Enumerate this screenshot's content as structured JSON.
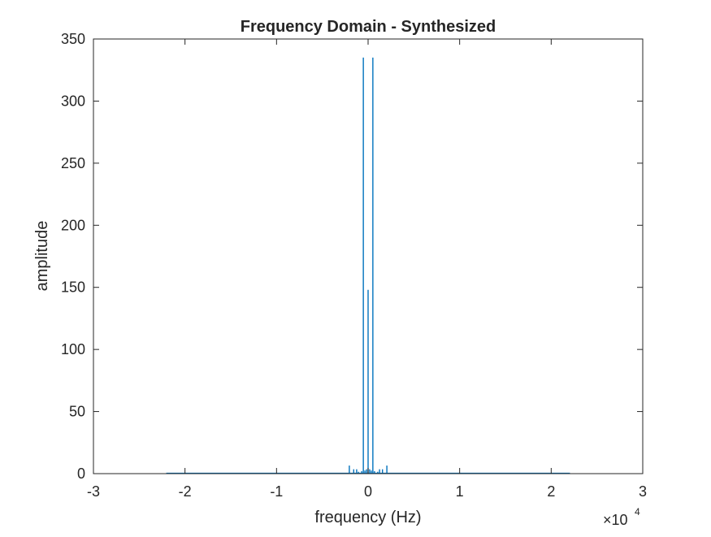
{
  "chart_data": {
    "type": "line",
    "title": "Frequency Domain - Synthesized",
    "xlabel": "frequency (Hz)",
    "ylabel": "amplitude",
    "x_exponent_label": "×10",
    "x_exponent_power": "4",
    "xlim": [
      -3,
      3
    ],
    "ylim": [
      0,
      350
    ],
    "x_scale_multiplier": 10000,
    "xticks": [
      -3,
      -2,
      -1,
      0,
      1,
      2,
      3
    ],
    "xtick_labels": [
      "-3",
      "-2",
      "-1",
      "0",
      "1",
      "2",
      "3"
    ],
    "yticks": [
      0,
      50,
      100,
      150,
      200,
      250,
      300,
      350
    ],
    "ytick_labels": [
      "0",
      "50",
      "100",
      "150",
      "200",
      "250",
      "300",
      "350"
    ],
    "grid": false,
    "line_color": "#0072BD",
    "x_range_plotted": [
      -2.205,
      2.205
    ],
    "spikes": [
      {
        "x": -0.052,
        "y": 335
      },
      {
        "x": 0.052,
        "y": 335
      },
      {
        "x": 0.0,
        "y": 148
      },
      {
        "x": -0.017,
        "y": 3.5
      },
      {
        "x": 0.017,
        "y": 3.5
      },
      {
        "x": -0.035,
        "y": 2.5
      },
      {
        "x": 0.035,
        "y": 2.5
      },
      {
        "x": -0.105,
        "y": 1.5
      },
      {
        "x": 0.105,
        "y": 1.5
      },
      {
        "x": -0.125,
        "y": 3.5
      },
      {
        "x": 0.125,
        "y": 3.5
      },
      {
        "x": -0.157,
        "y": 3.5
      },
      {
        "x": 0.157,
        "y": 3.5
      },
      {
        "x": -0.205,
        "y": 6.5
      },
      {
        "x": 0.205,
        "y": 6.5
      },
      {
        "x": -0.07,
        "y": 2
      },
      {
        "x": 0.07,
        "y": 2
      }
    ]
  }
}
